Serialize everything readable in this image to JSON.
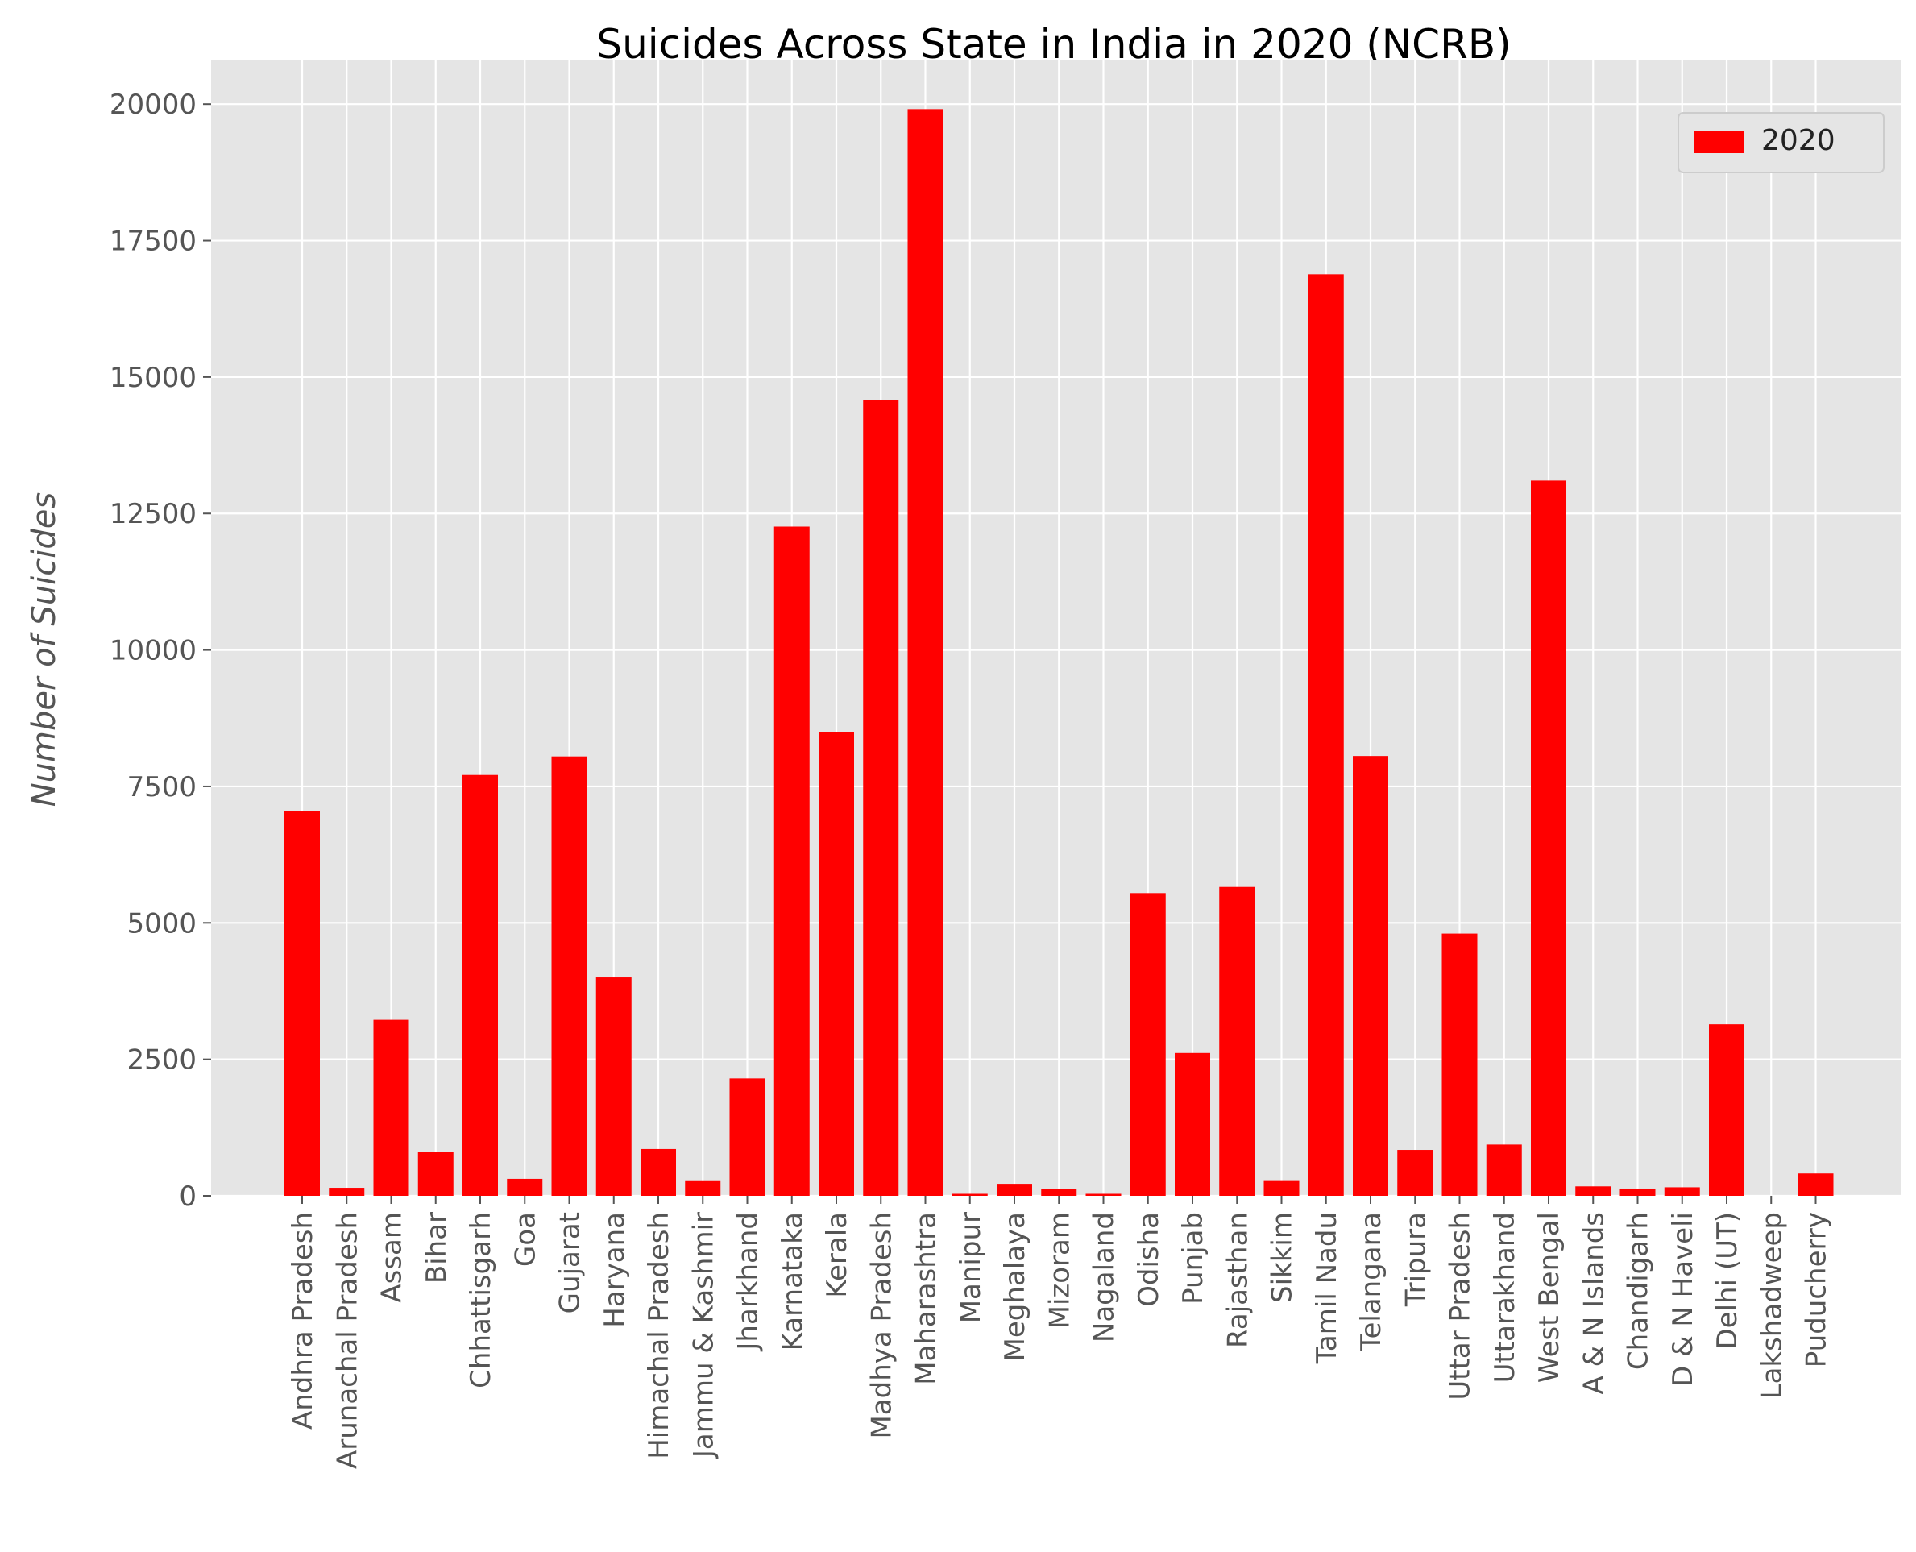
{
  "chart_data": {
    "type": "bar",
    "title": "Suicides Across State in India in 2020 (NCRB)",
    "xlabel": "",
    "ylabel": "Number of Suicides",
    "ylim": [
      0,
      20800
    ],
    "yticks": [
      0,
      2500,
      5000,
      7500,
      10000,
      12500,
      15000,
      17500,
      20000
    ],
    "grid": true,
    "legend": {
      "position": "upper-right",
      "entries": [
        "2020"
      ]
    },
    "colors": {
      "bar": "#ff0000",
      "plot_background": "#e5e5e5",
      "grid": "#ffffff"
    },
    "categories": [
      "Andhra Pradesh",
      "Arunachal Pradesh",
      "Assam",
      "Bihar",
      "Chhattisgarh",
      "Goa",
      "Gujarat",
      "Haryana",
      "Himachal Pradesh",
      "Jammu & Kashmir",
      "Jharkhand",
      "Karnataka",
      "Kerala",
      "Madhya Pradesh",
      "Maharashtra",
      "Manipur",
      "Meghalaya",
      "Mizoram",
      "Nagaland",
      "Odisha",
      "Punjab",
      "Rajasthan",
      "Sikkim",
      "Tamil Nadu",
      "Telangana",
      "Tripura",
      "Uttar Pradesh",
      "Uttarakhand",
      "West Bengal",
      "A & N Islands",
      "Chandigarh",
      "D & N Haveli",
      "Delhi (UT)",
      "Lakshadweep",
      "Puducherry"
    ],
    "series": [
      {
        "name": "2020",
        "values": [
          7043,
          147,
          3224,
          809,
          7710,
          311,
          8050,
          4000,
          857,
          284,
          2150,
          12260,
          8500,
          14578,
          19909,
          37,
          220,
          118,
          37,
          5546,
          2616,
          5658,
          286,
          16883,
          8058,
          841,
          4804,
          939,
          13103,
          173,
          133,
          156,
          3142,
          0,
          410
        ]
      }
    ]
  }
}
